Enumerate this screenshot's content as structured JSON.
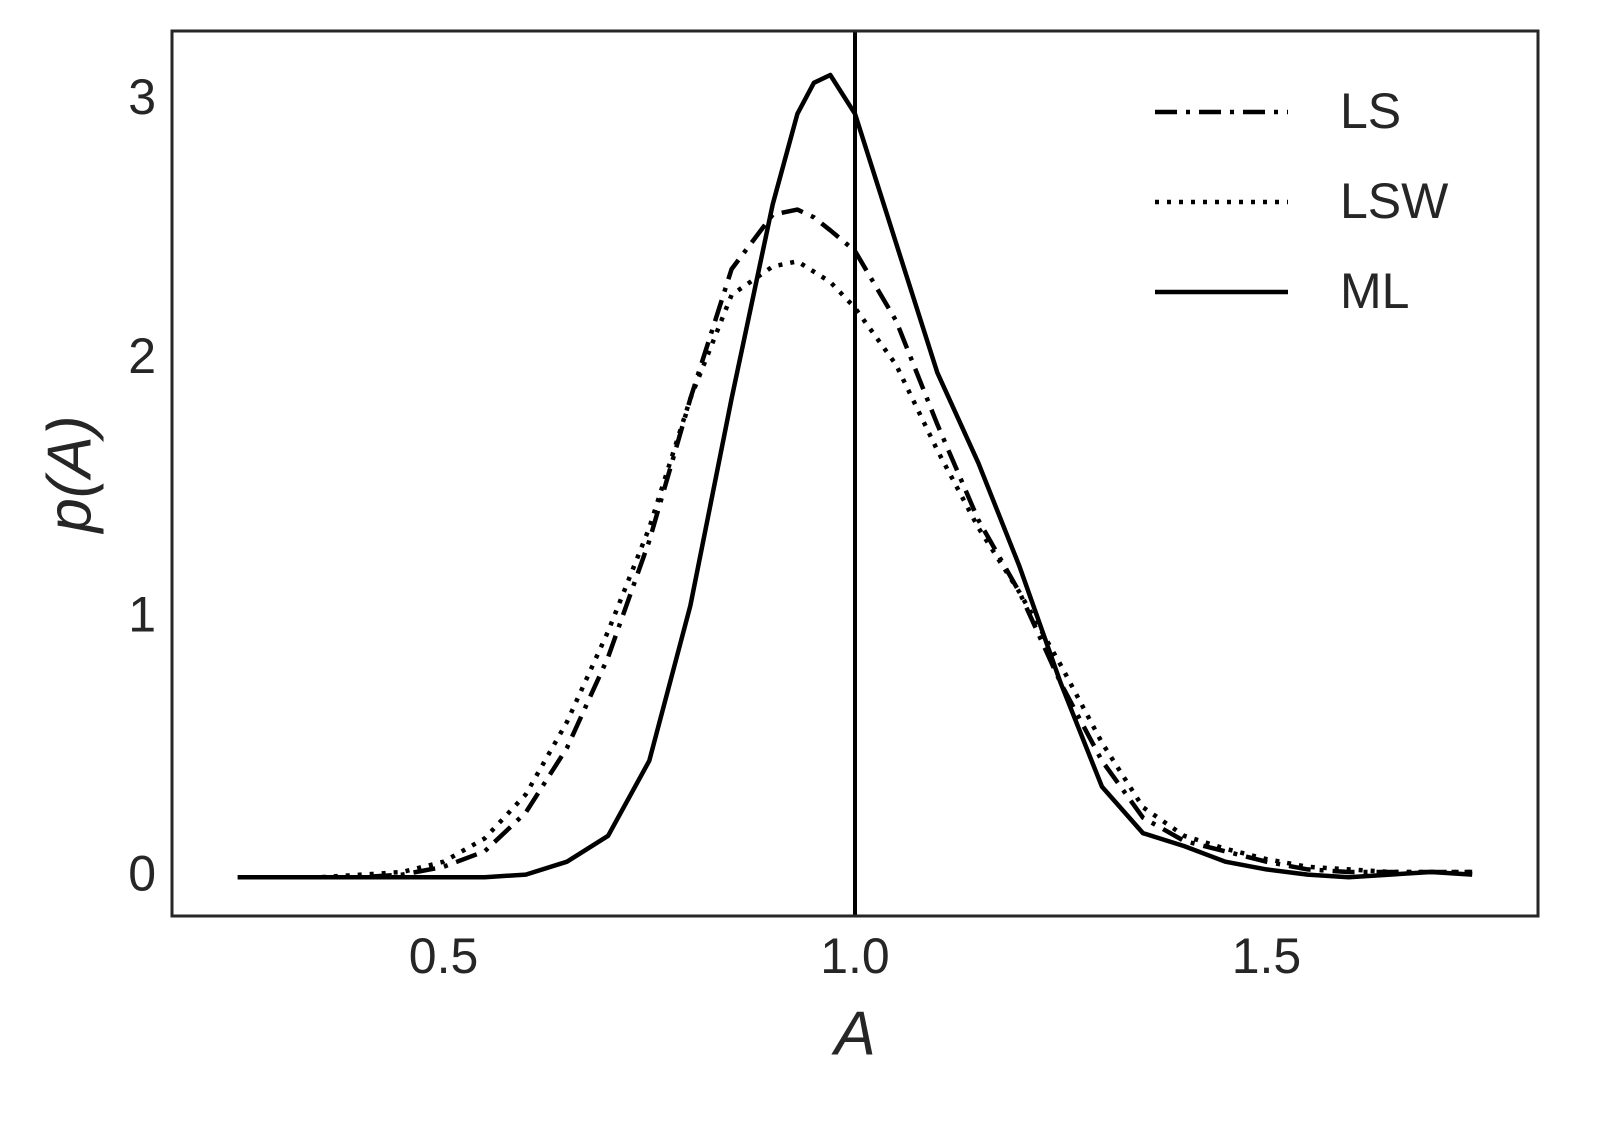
{
  "chart_data": {
    "type": "line",
    "xlabel": "A",
    "ylabel": "p(A)",
    "x": [
      0.25,
      0.3,
      0.35,
      0.4,
      0.45,
      0.5,
      0.55,
      0.6,
      0.65,
      0.7,
      0.75,
      0.8,
      0.85,
      0.9,
      0.93,
      0.95,
      0.97,
      1.0,
      1.05,
      1.1,
      1.15,
      1.2,
      1.25,
      1.3,
      1.35,
      1.4,
      1.45,
      1.5,
      1.55,
      1.6,
      1.65,
      1.7,
      1.75
    ],
    "series": [
      {
        "name": "LS",
        "color": "#000000",
        "linestyle": "dashdot",
        "values": [
          0,
          0,
          0,
          0,
          0.01,
          0.04,
          0.1,
          0.25,
          0.5,
          0.85,
          1.3,
          1.85,
          2.35,
          2.56,
          2.58,
          2.55,
          2.5,
          2.42,
          2.15,
          1.75,
          1.38,
          1.1,
          0.75,
          0.45,
          0.23,
          0.14,
          0.1,
          0.06,
          0.03,
          0.02,
          0.02,
          0.02,
          0.02
        ]
      },
      {
        "name": "LSW",
        "color": "#000000",
        "linestyle": "dotted",
        "values": [
          0,
          0,
          0,
          0.01,
          0.02,
          0.06,
          0.15,
          0.32,
          0.6,
          0.95,
          1.35,
          1.85,
          2.25,
          2.36,
          2.38,
          2.34,
          2.3,
          2.2,
          1.98,
          1.65,
          1.35,
          1.1,
          0.82,
          0.52,
          0.27,
          0.16,
          0.11,
          0.07,
          0.04,
          0.03,
          0.02,
          0.02,
          0.02
        ]
      },
      {
        "name": "ML",
        "color": "#000000",
        "linestyle": "solid",
        "values": [
          0,
          0,
          0,
          0,
          0,
          0,
          0,
          0.01,
          0.06,
          0.16,
          0.45,
          1.05,
          1.85,
          2.6,
          2.95,
          3.07,
          3.1,
          2.95,
          2.45,
          1.95,
          1.6,
          1.2,
          0.75,
          0.35,
          0.17,
          0.12,
          0.06,
          0.03,
          0.01,
          0,
          0.01,
          0.02,
          0.01
        ]
      }
    ],
    "vlines": [
      1.0
    ],
    "xlim": [
      0.17,
      1.83
    ],
    "xticks": [
      0.5,
      {
        "value": 1.0,
        "label": "1.0"
      },
      1.5
    ],
    "ylim": [
      -0.15,
      3.27
    ],
    "yticks": [
      0,
      1,
      2,
      3
    ],
    "grid": false,
    "legend": "upper right"
  }
}
